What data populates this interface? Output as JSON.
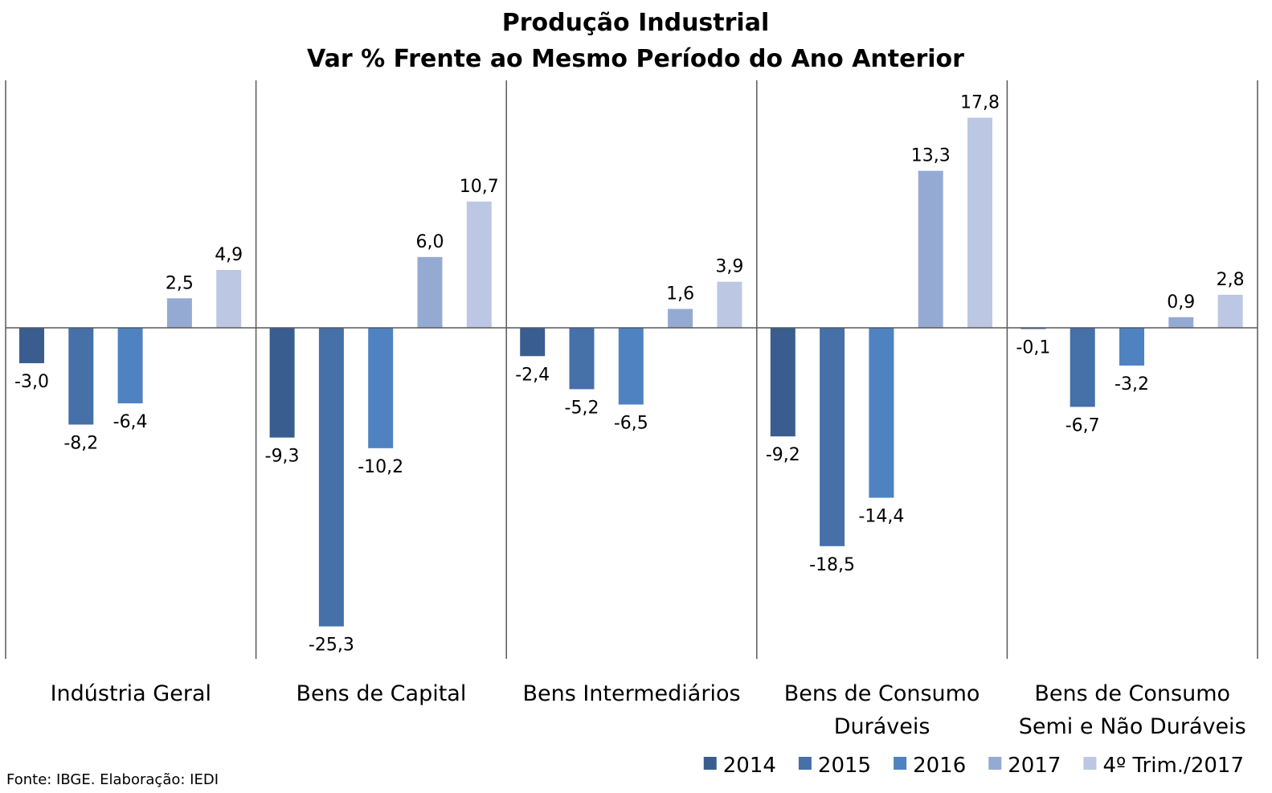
{
  "chart_data": {
    "type": "bar",
    "title_lines": [
      "Produção Industrial",
      "Var % Frente ao Mesmo Período do Ano Anterior"
    ],
    "categories": [
      [
        "Indústria Geral"
      ],
      [
        "Bens de Capital"
      ],
      [
        "Bens Intermediários"
      ],
      [
        "Bens de Consumo",
        "Duráveis"
      ],
      [
        "Bens de Consumo",
        "Semi e Não Duráveis"
      ]
    ],
    "series": [
      {
        "name": "2014",
        "color": "#3a5d8f",
        "values": [
          -3.0,
          -9.3,
          -2.4,
          -9.2,
          -0.1
        ],
        "labels": [
          "-3,0",
          "-9,3",
          "-2,4",
          "-9,2",
          "-0,1"
        ]
      },
      {
        "name": "2015",
        "color": "#4570a8",
        "values": [
          -8.2,
          -25.3,
          -5.2,
          -18.5,
          -6.7
        ],
        "labels": [
          "-8,2",
          "-25,3",
          "-5,2",
          "-18,5",
          "-6,7"
        ]
      },
      {
        "name": "2016",
        "color": "#4f82c0",
        "values": [
          -6.4,
          -10.2,
          -6.5,
          -14.4,
          -3.2
        ],
        "labels": [
          "-6,4",
          "-10,2",
          "-6,5",
          "-14,4",
          "-3,2"
        ]
      },
      {
        "name": "2017",
        "color": "#95aad3",
        "values": [
          2.5,
          6.0,
          1.6,
          13.3,
          0.9
        ],
        "labels": [
          "2,5",
          "6,0",
          "1,6",
          "13,3",
          "0,9"
        ]
      },
      {
        "name": "4º Trim./2017",
        "color": "#bcc8e3",
        "values": [
          4.9,
          10.7,
          3.9,
          17.8,
          2.8
        ],
        "labels": [
          "4,9",
          "10,7",
          "3,9",
          "17,8",
          "2,8"
        ]
      }
    ],
    "ylim": [
      -28,
      21
    ],
    "grid": false,
    "legend_position": "bottom-right",
    "source_note": "Fonte: IBGE. Elaboração: IEDI"
  }
}
